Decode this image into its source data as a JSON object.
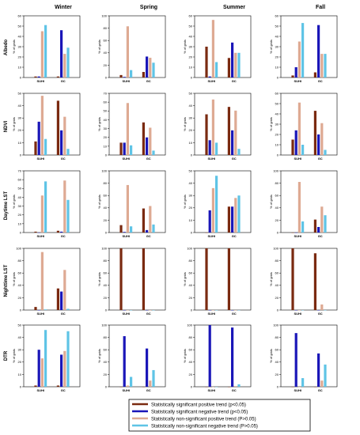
{
  "seasons": [
    "Winter",
    "Spring",
    "Summer",
    "Fall"
  ],
  "variables": [
    "Albedo",
    "NDVI",
    "Daytime LST",
    "Nighttime LST",
    "DTR"
  ],
  "ylabel": "% of grids",
  "categories": [
    "SUHI",
    "GC"
  ],
  "legend": [
    {
      "label": "Statistically significant positive trend (p<0.05)",
      "color": "#7a2a10"
    },
    {
      "label": "Statistically significant negative trend (p<0.05)",
      "color": "#1a16b8"
    },
    {
      "label": "Statistically non-significant positive trend (P>0.05)",
      "color": "#deaa93"
    },
    {
      "label": "Statistically non-significant negative trend (P>0.05)",
      "color": "#5fc4e6"
    }
  ],
  "chart_data": [
    {
      "type": "bar",
      "variable": "Albedo",
      "season": "Winter",
      "ylim": [
        0,
        60
      ],
      "yticks": [
        0,
        10,
        20,
        30,
        40,
        50,
        60
      ],
      "categories": [
        "SUHI",
        "GC"
      ],
      "series": [
        {
          "values": [
            1,
            1
          ]
        },
        {
          "values": [
            1,
            46
          ]
        },
        {
          "values": [
            45,
            23
          ]
        },
        {
          "values": [
            51,
            29
          ]
        }
      ]
    },
    {
      "type": "bar",
      "variable": "Albedo",
      "season": "Spring",
      "ylim": [
        0,
        100
      ],
      "yticks": [
        0,
        20,
        40,
        60,
        80,
        100
      ],
      "categories": [
        "SUHI",
        "GC"
      ],
      "series": [
        {
          "values": [
            4,
            9
          ]
        },
        {
          "values": [
            1,
            34
          ]
        },
        {
          "values": [
            83,
            32
          ]
        },
        {
          "values": [
            12,
            24
          ]
        }
      ]
    },
    {
      "type": "bar",
      "variable": "Albedo",
      "season": "Summer",
      "ylim": [
        0,
        60
      ],
      "yticks": [
        0,
        10,
        20,
        30,
        40,
        50,
        60
      ],
      "categories": [
        "SUHI",
        "GC"
      ],
      "series": [
        {
          "values": [
            30,
            19
          ]
        },
        {
          "values": [
            1,
            34
          ]
        },
        {
          "values": [
            56,
            24
          ]
        },
        {
          "values": [
            15,
            24
          ]
        }
      ]
    },
    {
      "type": "bar",
      "variable": "Albedo",
      "season": "Fall",
      "ylim": [
        0,
        60
      ],
      "yticks": [
        0,
        10,
        20,
        30,
        40,
        50,
        60
      ],
      "categories": [
        "SUHI",
        "GC"
      ],
      "series": [
        {
          "values": [
            2,
            5
          ]
        },
        {
          "values": [
            10,
            51
          ]
        },
        {
          "values": [
            35,
            23
          ]
        },
        {
          "values": [
            53,
            23
          ]
        }
      ]
    },
    {
      "type": "bar",
      "variable": "NDVI",
      "season": "Winter",
      "ylim": [
        0,
        50
      ],
      "yticks": [
        0,
        10,
        20,
        30,
        40,
        50
      ],
      "categories": [
        "SUHI",
        "GC"
      ],
      "series": [
        {
          "values": [
            11,
            44
          ]
        },
        {
          "values": [
            27,
            20
          ]
        },
        {
          "values": [
            48,
            31
          ]
        },
        {
          "values": [
            13,
            5
          ]
        }
      ]
    },
    {
      "type": "bar",
      "variable": "NDVI",
      "season": "Spring",
      "ylim": [
        0,
        70
      ],
      "yticks": [
        0,
        10,
        20,
        30,
        40,
        50,
        60,
        70
      ],
      "categories": [
        "SUHI",
        "GC"
      ],
      "series": [
        {
          "values": [
            14,
            37
          ]
        },
        {
          "values": [
            14,
            20
          ]
        },
        {
          "values": [
            59,
            31
          ]
        },
        {
          "values": [
            11,
            5
          ]
        }
      ]
    },
    {
      "type": "bar",
      "variable": "NDVI",
      "season": "Summer",
      "ylim": [
        0,
        50
      ],
      "yticks": [
        0,
        10,
        20,
        30,
        40,
        50
      ],
      "categories": [
        "SUHI",
        "GC"
      ],
      "series": [
        {
          "values": [
            33,
            39
          ]
        },
        {
          "values": [
            12,
            20
          ]
        },
        {
          "values": [
            45,
            36
          ]
        },
        {
          "values": [
            10,
            5
          ]
        }
      ]
    },
    {
      "type": "bar",
      "variable": "NDVI",
      "season": "Fall",
      "ylim": [
        0,
        60
      ],
      "yticks": [
        0,
        10,
        20,
        30,
        40,
        50,
        60
      ],
      "categories": [
        "SUHI",
        "GC"
      ],
      "series": [
        {
          "values": [
            15,
            43
          ]
        },
        {
          "values": [
            24,
            20
          ]
        },
        {
          "values": [
            51,
            31
          ]
        },
        {
          "values": [
            10,
            5
          ]
        }
      ]
    },
    {
      "type": "bar",
      "variable": "Daytime LST",
      "season": "Winter",
      "ylim": [
        0,
        70
      ],
      "yticks": [
        0,
        10,
        20,
        30,
        40,
        50,
        60,
        70
      ],
      "categories": [
        "SUHI",
        "GC"
      ],
      "series": [
        {
          "values": [
            1,
            2
          ]
        },
        {
          "values": [
            0,
            1
          ]
        },
        {
          "values": [
            42,
            59
          ]
        },
        {
          "values": [
            58,
            37
          ]
        }
      ]
    },
    {
      "type": "bar",
      "variable": "Daytime LST",
      "season": "Spring",
      "ylim": [
        0,
        100
      ],
      "yticks": [
        0,
        20,
        40,
        60,
        80,
        100
      ],
      "categories": [
        "SUHI",
        "GC"
      ],
      "series": [
        {
          "values": [
            12,
            39
          ]
        },
        {
          "values": [
            1,
            4
          ]
        },
        {
          "values": [
            77,
            43
          ]
        },
        {
          "values": [
            10,
            13
          ]
        }
      ]
    },
    {
      "type": "bar",
      "variable": "Daytime LST",
      "season": "Summer",
      "ylim": [
        0,
        50
      ],
      "yticks": [
        0,
        10,
        20,
        30,
        40,
        50
      ],
      "categories": [
        "SUHI",
        "GC"
      ],
      "series": [
        {
          "values": [
            0,
            21
          ]
        },
        {
          "values": [
            18,
            21
          ]
        },
        {
          "values": [
            36,
            28
          ]
        },
        {
          "values": [
            46,
            30
          ]
        }
      ]
    },
    {
      "type": "bar",
      "variable": "Daytime LST",
      "season": "Fall",
      "ylim": [
        0,
        100
      ],
      "yticks": [
        0,
        20,
        40,
        60,
        80,
        100
      ],
      "categories": [
        "SUHI",
        "GC"
      ],
      "series": [
        {
          "values": [
            0,
            21
          ]
        },
        {
          "values": [
            0,
            9
          ]
        },
        {
          "values": [
            82,
            42
          ]
        },
        {
          "values": [
            18,
            28
          ]
        }
      ]
    },
    {
      "type": "bar",
      "variable": "Nighttime LST",
      "season": "Winter",
      "ylim": [
        0,
        100
      ],
      "yticks": [
        0,
        20,
        40,
        60,
        80,
        100
      ],
      "categories": [
        "SUHI",
        "GC"
      ],
      "series": [
        {
          "values": [
            5,
            35
          ]
        },
        {
          "values": [
            0,
            30
          ]
        },
        {
          "values": [
            94,
            65
          ]
        },
        {
          "values": [
            1,
            2
          ]
        }
      ]
    },
    {
      "type": "bar",
      "variable": "Nighttime LST",
      "season": "Spring",
      "ylim": [
        0,
        100
      ],
      "yticks": [
        0,
        20,
        40,
        60,
        80,
        100
      ],
      "categories": [
        "SUHI",
        "GC"
      ],
      "series": [
        {
          "values": [
            100,
            100
          ]
        },
        {
          "values": [
            0,
            0
          ]
        },
        {
          "values": [
            0,
            0
          ]
        },
        {
          "values": [
            0,
            0
          ]
        }
      ]
    },
    {
      "type": "bar",
      "variable": "Nighttime LST",
      "season": "Summer",
      "ylim": [
        0,
        100
      ],
      "yticks": [
        0,
        20,
        40,
        60,
        80,
        100
      ],
      "categories": [
        "SUHI",
        "GC"
      ],
      "series": [
        {
          "values": [
            100,
            100
          ]
        },
        {
          "values": [
            0,
            0
          ]
        },
        {
          "values": [
            0,
            0
          ]
        },
        {
          "values": [
            0,
            0
          ]
        }
      ]
    },
    {
      "type": "bar",
      "variable": "Nighttime LST",
      "season": "Fall",
      "ylim": [
        0,
        100
      ],
      "yticks": [
        0,
        20,
        40,
        60,
        80,
        100
      ],
      "categories": [
        "SUHI",
        "GC"
      ],
      "series": [
        {
          "values": [
            100,
            92
          ]
        },
        {
          "values": [
            0,
            0
          ]
        },
        {
          "values": [
            0,
            9
          ]
        },
        {
          "values": [
            0,
            0
          ]
        }
      ]
    },
    {
      "type": "bar",
      "variable": "DTR",
      "season": "Winter",
      "ylim": [
        0,
        50
      ],
      "yticks": [
        0,
        10,
        20,
        30,
        40,
        50
      ],
      "categories": [
        "SUHI",
        "GC"
      ],
      "series": [
        {
          "values": [
            1,
            1
          ]
        },
        {
          "values": [
            30,
            26
          ]
        },
        {
          "values": [
            23,
            29
          ]
        },
        {
          "values": [
            46,
            45
          ]
        }
      ]
    },
    {
      "type": "bar",
      "variable": "DTR",
      "season": "Spring",
      "ylim": [
        0,
        100
      ],
      "yticks": [
        0,
        20,
        40,
        60,
        80,
        100
      ],
      "categories": [
        "SUHI",
        "GC"
      ],
      "series": [
        {
          "values": [
            0,
            0
          ]
        },
        {
          "values": [
            82,
            62
          ]
        },
        {
          "values": [
            2,
            10
          ]
        },
        {
          "values": [
            16,
            27
          ]
        }
      ]
    },
    {
      "type": "bar",
      "variable": "DTR",
      "season": "Summer",
      "ylim": [
        0,
        100
      ],
      "yticks": [
        0,
        20,
        40,
        60,
        80,
        100
      ],
      "categories": [
        "SUHI",
        "GC"
      ],
      "series": [
        {
          "values": [
            0,
            0
          ]
        },
        {
          "values": [
            100,
            96
          ]
        },
        {
          "values": [
            0,
            1
          ]
        },
        {
          "values": [
            0,
            4
          ]
        }
      ]
    },
    {
      "type": "bar",
      "variable": "DTR",
      "season": "Fall",
      "ylim": [
        0,
        100
      ],
      "yticks": [
        0,
        20,
        40,
        60,
        80,
        100
      ],
      "categories": [
        "SUHI",
        "GC"
      ],
      "series": [
        {
          "values": [
            0,
            0
          ]
        },
        {
          "values": [
            87,
            54
          ]
        },
        {
          "values": [
            0,
            10
          ]
        },
        {
          "values": [
            14,
            36
          ]
        }
      ]
    }
  ]
}
